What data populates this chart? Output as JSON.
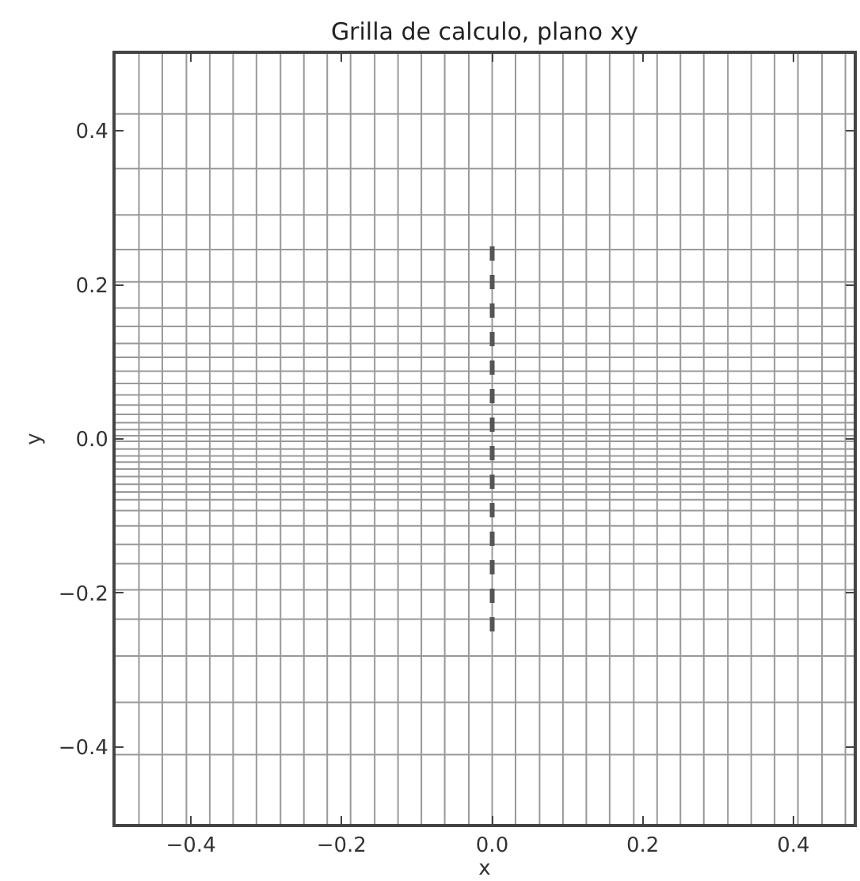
{
  "chart_data": {
    "type": "line",
    "title": "Grilla de calculo, plano xy",
    "xlabel": "x",
    "ylabel": "y",
    "series": [
      {
        "x": [
          0,
          0
        ],
        "values": [
          -0.25,
          0.25
        ],
        "color": "#555555",
        "line_style": "dashed"
      }
    ],
    "xlim": [
      -0.5,
      0.48
    ],
    "ylim": [
      -0.5,
      0.5
    ],
    "xticks": [
      {
        "value": -0.4,
        "label": "−0.4"
      },
      {
        "value": -0.2,
        "label": "−0.2"
      },
      {
        "value": 0,
        "label": "0.0"
      },
      {
        "value": 0.2,
        "label": "0.2"
      },
      {
        "value": 0.4,
        "label": "0.4"
      }
    ],
    "yticks": [
      {
        "value": -0.4,
        "label": "−0.4"
      },
      {
        "value": -0.2,
        "label": "−0.2"
      },
      {
        "value": 0,
        "label": "0.0"
      },
      {
        "value": 0.2,
        "label": "0.2"
      },
      {
        "value": 0.4,
        "label": "0.4"
      }
    ],
    "ref_lines": [
      {
        "axis": "x",
        "value": -0.469,
        "color": "#999999"
      },
      {
        "axis": "x",
        "value": -0.438,
        "color": "#999999"
      },
      {
        "axis": "x",
        "value": -0.406,
        "color": "#999999"
      },
      {
        "axis": "x",
        "value": -0.375,
        "color": "#999999"
      },
      {
        "axis": "x",
        "value": -0.344,
        "color": "#999999"
      },
      {
        "axis": "x",
        "value": -0.313,
        "color": "#999999"
      },
      {
        "axis": "x",
        "value": -0.281,
        "color": "#999999"
      },
      {
        "axis": "x",
        "value": -0.25,
        "color": "#999999"
      },
      {
        "axis": "x",
        "value": -0.219,
        "color": "#999999"
      },
      {
        "axis": "x",
        "value": -0.188,
        "color": "#999999"
      },
      {
        "axis": "x",
        "value": -0.156,
        "color": "#999999"
      },
      {
        "axis": "x",
        "value": -0.125,
        "color": "#999999"
      },
      {
        "axis": "x",
        "value": -0.094,
        "color": "#999999"
      },
      {
        "axis": "x",
        "value": -0.063,
        "color": "#999999"
      },
      {
        "axis": "x",
        "value": -0.031,
        "color": "#999999"
      },
      {
        "axis": "x",
        "value": 0,
        "color": "#999999"
      },
      {
        "axis": "x",
        "value": 0.031,
        "color": "#999999"
      },
      {
        "axis": "x",
        "value": 0.063,
        "color": "#999999"
      },
      {
        "axis": "x",
        "value": 0.094,
        "color": "#999999"
      },
      {
        "axis": "x",
        "value": 0.125,
        "color": "#999999"
      },
      {
        "axis": "x",
        "value": 0.156,
        "color": "#999999"
      },
      {
        "axis": "x",
        "value": 0.188,
        "color": "#999999"
      },
      {
        "axis": "x",
        "value": 0.219,
        "color": "#999999"
      },
      {
        "axis": "x",
        "value": 0.25,
        "color": "#999999"
      },
      {
        "axis": "x",
        "value": 0.281,
        "color": "#999999"
      },
      {
        "axis": "x",
        "value": 0.313,
        "color": "#999999"
      },
      {
        "axis": "x",
        "value": 0.344,
        "color": "#999999"
      },
      {
        "axis": "x",
        "value": 0.375,
        "color": "#999999"
      },
      {
        "axis": "x",
        "value": 0.406,
        "color": "#999999"
      },
      {
        "axis": "x",
        "value": 0.438,
        "color": "#999999"
      },
      {
        "axis": "x",
        "value": 0.469,
        "color": "#999999"
      },
      {
        "axis": "y",
        "value": 0.422,
        "color": "#999999"
      },
      {
        "axis": "y",
        "value": 0.351,
        "color": "#999999"
      },
      {
        "axis": "y",
        "value": 0.291,
        "color": "#999999"
      },
      {
        "axis": "y",
        "value": 0.246,
        "color": "#999999"
      },
      {
        "axis": "y",
        "value": 0.204,
        "color": "#999999"
      },
      {
        "axis": "y",
        "value": 0.17,
        "color": "#999999"
      },
      {
        "axis": "y",
        "value": 0.146,
        "color": "#999999"
      },
      {
        "axis": "y",
        "value": 0.124,
        "color": "#999999"
      },
      {
        "axis": "y",
        "value": 0.106,
        "color": "#999999"
      },
      {
        "axis": "y",
        "value": 0.088,
        "color": "#999999"
      },
      {
        "axis": "y",
        "value": 0.072,
        "color": "#999999"
      },
      {
        "axis": "y",
        "value": 0.057,
        "color": "#999999"
      },
      {
        "axis": "y",
        "value": 0.044,
        "color": "#999999"
      },
      {
        "axis": "y",
        "value": 0.032,
        "color": "#999999"
      },
      {
        "axis": "y",
        "value": 0.021,
        "color": "#999999"
      },
      {
        "axis": "y",
        "value": 0.012,
        "color": "#999999"
      },
      {
        "axis": "y",
        "value": 0.004,
        "color": "#999999"
      },
      {
        "axis": "y",
        "value": -0.003,
        "color": "#999999"
      },
      {
        "axis": "y",
        "value": -0.013,
        "color": "#999999"
      },
      {
        "axis": "y",
        "value": -0.022,
        "color": "#999999"
      },
      {
        "axis": "y",
        "value": -0.03,
        "color": "#999999"
      },
      {
        "axis": "y",
        "value": -0.039,
        "color": "#999999"
      },
      {
        "axis": "y",
        "value": -0.049,
        "color": "#999999"
      },
      {
        "axis": "y",
        "value": -0.059,
        "color": "#999999"
      },
      {
        "axis": "y",
        "value": -0.069,
        "color": "#999999"
      },
      {
        "axis": "y",
        "value": -0.079,
        "color": "#999999"
      },
      {
        "axis": "y",
        "value": -0.093,
        "color": "#999999"
      },
      {
        "axis": "y",
        "value": -0.113,
        "color": "#999999"
      },
      {
        "axis": "y",
        "value": -0.137,
        "color": "#999999"
      },
      {
        "axis": "y",
        "value": -0.162,
        "color": "#999999"
      },
      {
        "axis": "y",
        "value": -0.196,
        "color": "#999999"
      },
      {
        "axis": "y",
        "value": -0.234,
        "color": "#999999"
      },
      {
        "axis": "y",
        "value": -0.282,
        "color": "#999999"
      },
      {
        "axis": "y",
        "value": -0.342,
        "color": "#999999"
      },
      {
        "axis": "y",
        "value": -0.41,
        "color": "#999999"
      }
    ]
  }
}
